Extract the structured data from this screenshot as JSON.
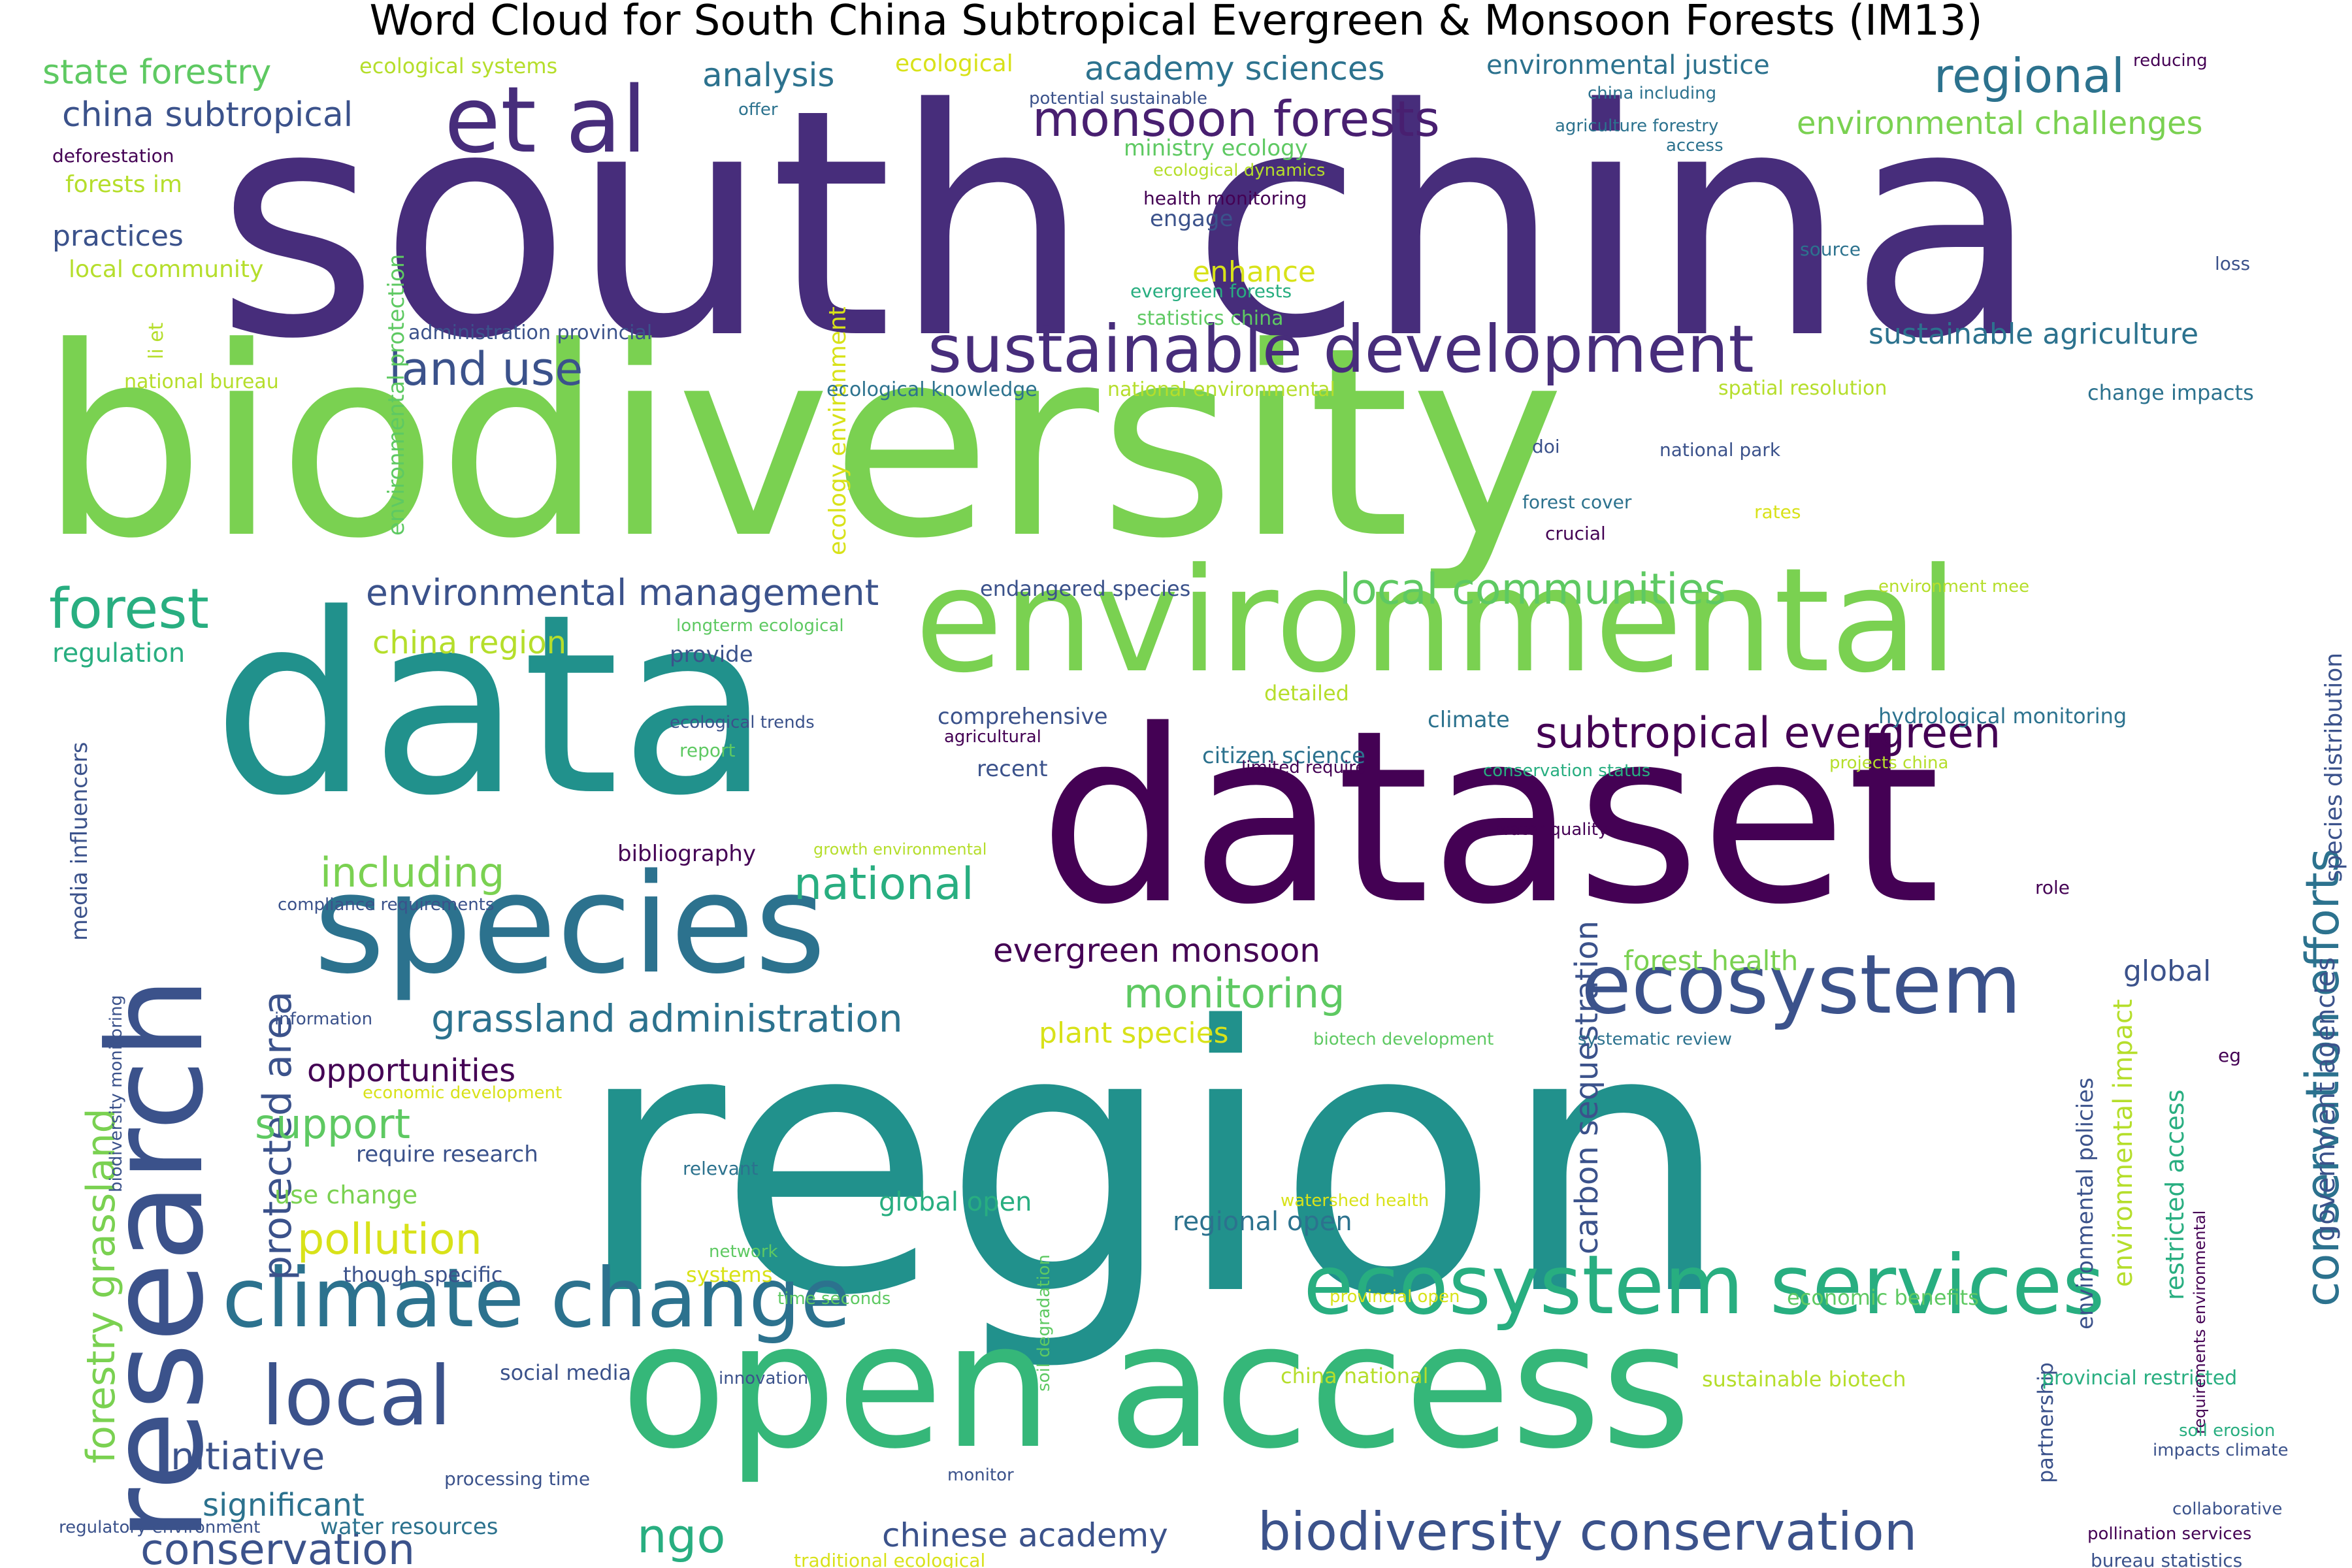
{
  "title": "Word Cloud for South China Subtropical Evergreen & Monsoon Forests (IM13)",
  "palette": [
    "#440154",
    "#472d7b",
    "#3b528b",
    "#2c728e",
    "#21918c",
    "#28ae80",
    "#5ec962",
    "#addc30",
    "#fde725"
  ],
  "words": [
    {
      "text": "south china",
      "color": "#472d7b"
    },
    {
      "text": "biodiversity",
      "color": "#7ad151"
    },
    {
      "text": "region",
      "color": "#21918c"
    },
    {
      "text": "dataset",
      "color": "#440154"
    },
    {
      "text": "data",
      "color": "#21918c"
    },
    {
      "text": "open access",
      "color": "#35b779"
    },
    {
      "text": "environmental",
      "color": "#7ad151"
    },
    {
      "text": "research",
      "color": "#3b528b"
    },
    {
      "text": "species",
      "color": "#2c728e"
    },
    {
      "text": "et al",
      "color": "#472d7b"
    },
    {
      "text": "ecosystem services",
      "color": "#28ae80"
    },
    {
      "text": "climate change",
      "color": "#2c728e"
    },
    {
      "text": "ecosystem",
      "color": "#3b528b"
    },
    {
      "text": "sustainable development",
      "color": "#472d7b"
    },
    {
      "text": "local",
      "color": "#3b528b"
    },
    {
      "text": "biodiversity conservation",
      "color": "#3b528b"
    },
    {
      "text": "monsoon forests",
      "color": "#481f70"
    },
    {
      "text": "forest",
      "color": "#28ae80"
    },
    {
      "text": "regional",
      "color": "#2c728e"
    },
    {
      "text": "conservation efforts",
      "color": "#2c728e"
    },
    {
      "text": "subtropical evergreen",
      "color": "#440154"
    },
    {
      "text": "land use",
      "color": "#3b528b"
    },
    {
      "text": "local communities",
      "color": "#5ec962"
    },
    {
      "text": "environmental management",
      "color": "#3b528b"
    },
    {
      "text": "grassland administration",
      "color": "#2c728e"
    },
    {
      "text": "protected area",
      "color": "#3b528b"
    },
    {
      "text": "forestry grassland",
      "color": "#7ad151"
    },
    {
      "text": "including",
      "color": "#7ad151"
    },
    {
      "text": "national",
      "color": "#28ae80"
    },
    {
      "text": "conservation",
      "color": "#3b528b"
    },
    {
      "text": "ngo",
      "color": "#28ae80"
    },
    {
      "text": "pollution",
      "color": "#d8e219"
    },
    {
      "text": "monitoring",
      "color": "#5ec962"
    },
    {
      "text": "support",
      "color": "#5ec962"
    },
    {
      "text": "initiative",
      "color": "#3b528b"
    },
    {
      "text": "carbon sequestration",
      "color": "#3b528b"
    },
    {
      "text": "evergreen monsoon",
      "color": "#440154"
    },
    {
      "text": "chinese academy",
      "color": "#3b528b"
    },
    {
      "text": "opportunities",
      "color": "#440154"
    },
    {
      "text": "significant",
      "color": "#2c728e"
    },
    {
      "text": "academy sciences",
      "color": "#2c728e"
    },
    {
      "text": "china subtropical",
      "color": "#3b528b"
    },
    {
      "text": "state forestry",
      "color": "#5ec962"
    },
    {
      "text": "environmental challenges",
      "color": "#7ad151"
    },
    {
      "text": "analysis",
      "color": "#2c728e"
    },
    {
      "text": "environmental impact",
      "color": "#b5de2b"
    },
    {
      "text": "government agencies",
      "color": "#3b528b"
    },
    {
      "text": "china region",
      "color": "#b5de2b"
    },
    {
      "text": "sustainable agriculture",
      "color": "#2c728e"
    },
    {
      "text": "environmental justice",
      "color": "#2c728e"
    },
    {
      "text": "practices",
      "color": "#3b528b"
    },
    {
      "text": "forest health",
      "color": "#7ad151"
    },
    {
      "text": "regional open",
      "color": "#2c728e"
    },
    {
      "text": "global open",
      "color": "#28ae80"
    },
    {
      "text": "enhance",
      "color": "#d8e219"
    },
    {
      "text": "plant species",
      "color": "#d8e219"
    },
    {
      "text": "global",
      "color": "#3b528b"
    },
    {
      "text": "regulation",
      "color": "#28ae80"
    },
    {
      "text": "restricted access",
      "color": "#28ae80"
    },
    {
      "text": "species distribution",
      "color": "#3b528b"
    },
    {
      "text": "environmental policies",
      "color": "#3b528b"
    },
    {
      "text": "ecology environment",
      "color": "#d8e219"
    },
    {
      "text": "environmental protection",
      "color": "#5ec962"
    },
    {
      "text": "ecological",
      "color": "#d8e219"
    },
    {
      "text": "use change",
      "color": "#7ad151"
    },
    {
      "text": "water resources",
      "color": "#2c728e"
    },
    {
      "text": "require research",
      "color": "#3b528b"
    },
    {
      "text": "comprehensive",
      "color": "#3b528b"
    },
    {
      "text": "citizen science",
      "color": "#2c728e"
    },
    {
      "text": "economic benefits",
      "color": "#5ec962"
    },
    {
      "text": "sustainable biotech",
      "color": "#b5de2b"
    },
    {
      "text": "china national",
      "color": "#b5de2b"
    },
    {
      "text": "social media",
      "color": "#3b528b"
    },
    {
      "text": "though specific",
      "color": "#3b528b"
    },
    {
      "text": "systems",
      "color": "#d8e219"
    },
    {
      "text": "detailed",
      "color": "#b5de2b"
    },
    {
      "text": "recent",
      "color": "#3b528b"
    },
    {
      "text": "climate",
      "color": "#2c728e"
    },
    {
      "text": "bibliography",
      "color": "#440154"
    },
    {
      "text": "hydrological monitoring",
      "color": "#2c728e"
    },
    {
      "text": "change impacts",
      "color": "#2c728e"
    },
    {
      "text": "endangered species",
      "color": "#3b528b"
    },
    {
      "text": "ecological systems",
      "color": "#b5de2b"
    },
    {
      "text": "forests im",
      "color": "#b5de2b"
    },
    {
      "text": "local community",
      "color": "#b5de2b"
    },
    {
      "text": "ministry ecology",
      "color": "#5ec962"
    },
    {
      "text": "engage",
      "color": "#3b528b"
    },
    {
      "text": "provide",
      "color": "#3b528b"
    },
    {
      "text": "media influencers",
      "color": "#3b528b"
    },
    {
      "text": "partnership",
      "color": "#3b528b"
    },
    {
      "text": "provincial restricted",
      "color": "#28ae80"
    },
    {
      "text": "national bureau",
      "color": "#b5de2b"
    },
    {
      "text": "spatial resolution",
      "color": "#b5de2b"
    },
    {
      "text": "ecological knowledge",
      "color": "#2c728e"
    },
    {
      "text": "national environmental",
      "color": "#b5de2b"
    },
    {
      "text": "administration provincial",
      "color": "#3b528b"
    },
    {
      "text": "statistics china",
      "color": "#5ec962"
    },
    {
      "text": "evergreen forests",
      "color": "#28ae80"
    },
    {
      "text": "health monitoring",
      "color": "#440154"
    },
    {
      "text": "potential sustainable",
      "color": "#3b528b"
    },
    {
      "text": "ecological dynamics",
      "color": "#b5de2b"
    },
    {
      "text": "offer",
      "color": "#2c728e"
    },
    {
      "text": "deforestation",
      "color": "#440154"
    },
    {
      "text": "li et",
      "color": "#b5de2b"
    },
    {
      "text": "agriculture forestry",
      "color": "#2c728e"
    },
    {
      "text": "china including",
      "color": "#2c728e"
    },
    {
      "text": "access",
      "color": "#2c728e"
    },
    {
      "text": "reducing",
      "color": "#440154"
    },
    {
      "text": "source",
      "color": "#2c728e"
    },
    {
      "text": "loss",
      "color": "#3b528b"
    },
    {
      "text": "doi",
      "color": "#3b528b"
    },
    {
      "text": "national park",
      "color": "#3b528b"
    },
    {
      "text": "forest cover",
      "color": "#2c728e"
    },
    {
      "text": "crucial",
      "color": "#440154"
    },
    {
      "text": "rates",
      "color": "#d8e219"
    },
    {
      "text": "environment mee",
      "color": "#b5de2b"
    },
    {
      "text": "longterm ecological",
      "color": "#5ec962"
    },
    {
      "text": "ecological trends",
      "color": "#3b528b"
    },
    {
      "text": "agricultural",
      "color": "#440154"
    },
    {
      "text": "report",
      "color": "#5ec962"
    },
    {
      "text": "limited require",
      "color": "#440154"
    },
    {
      "text": "conservation status",
      "color": "#28ae80"
    },
    {
      "text": "projects china",
      "color": "#b5de2b"
    },
    {
      "text": "water quality",
      "color": "#440154"
    },
    {
      "text": "growth environmental",
      "color": "#b5de2b"
    },
    {
      "text": "compliance requirements",
      "color": "#3b528b"
    },
    {
      "text": "information",
      "color": "#3b528b"
    },
    {
      "text": "economic development",
      "color": "#d8e219"
    },
    {
      "text": "biotech development",
      "color": "#5ec962"
    },
    {
      "text": "systematic review",
      "color": "#2c728e"
    },
    {
      "text": "role",
      "color": "#440154"
    },
    {
      "text": "eg",
      "color": "#440154"
    },
    {
      "text": "requirements environmental",
      "color": "#440154"
    },
    {
      "text": "biodiversity monitoring",
      "color": "#3b528b"
    },
    {
      "text": "relevant",
      "color": "#2c728e"
    },
    {
      "text": "watershed health",
      "color": "#d8e219"
    },
    {
      "text": "soil degradation",
      "color": "#5ec962"
    },
    {
      "text": "network",
      "color": "#5ec962"
    },
    {
      "text": "time seconds",
      "color": "#5ec962"
    },
    {
      "text": "provincial open",
      "color": "#d8e219"
    },
    {
      "text": "innovation",
      "color": "#3b528b"
    },
    {
      "text": "soil erosion",
      "color": "#28ae80"
    },
    {
      "text": "impacts climate",
      "color": "#3b528b"
    },
    {
      "text": "processing time",
      "color": "#3b528b"
    },
    {
      "text": "monitor",
      "color": "#3b528b"
    },
    {
      "text": "regulatory environment",
      "color": "#3b528b"
    },
    {
      "text": "traditional ecological",
      "color": "#d8e219"
    },
    {
      "text": "collaborative",
      "color": "#3b528b"
    },
    {
      "text": "pollination services",
      "color": "#440154"
    },
    {
      "text": "bureau statistics",
      "color": "#3b528b"
    }
  ]
}
